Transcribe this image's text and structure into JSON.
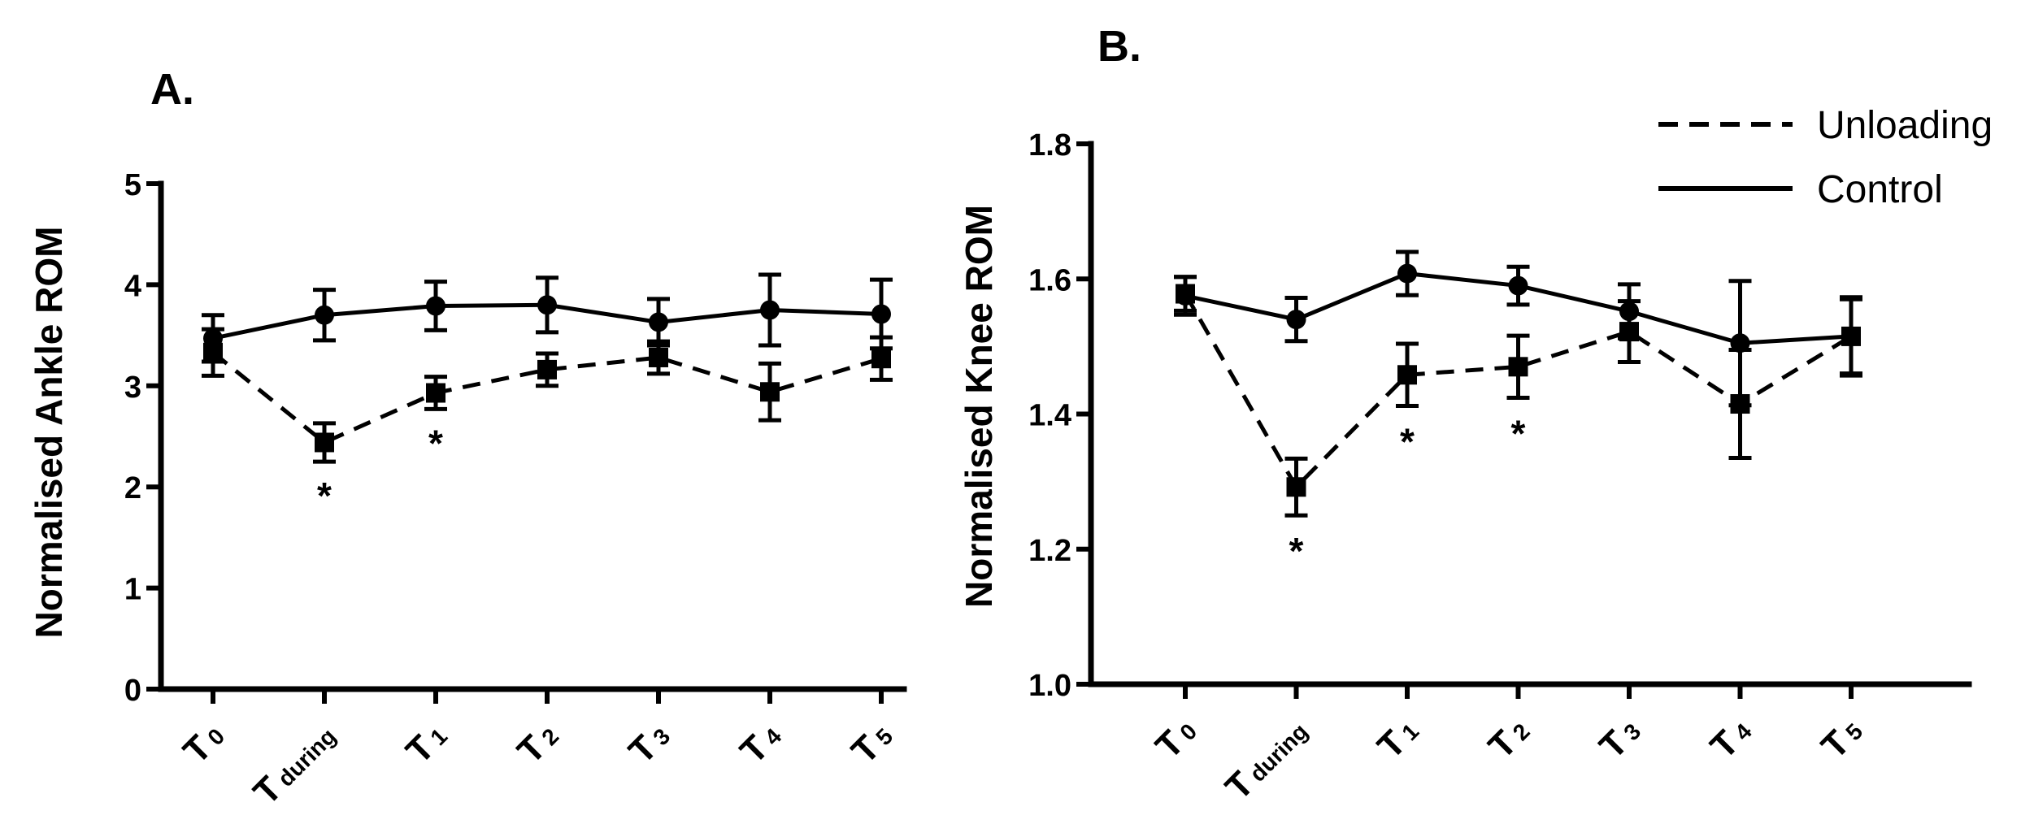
{
  "legend": {
    "unloading": "Unloading",
    "control": "Control"
  },
  "chart_data": [
    {
      "type": "line",
      "panel_label": "A.",
      "title": "",
      "xlabel": "",
      "ylabel": "Normalised Ankle ROM",
      "ylim": [
        0,
        5
      ],
      "yticks": [
        "0",
        "1",
        "2",
        "3",
        "4",
        "5"
      ],
      "categories": [
        {
          "main": "T",
          "sub": "0"
        },
        {
          "main": "T",
          "sub": "during"
        },
        {
          "main": "T",
          "sub": "1"
        },
        {
          "main": "T",
          "sub": "2"
        },
        {
          "main": "T",
          "sub": "3"
        },
        {
          "main": "T",
          "sub": "4"
        },
        {
          "main": "T",
          "sub": "5"
        }
      ],
      "series": [
        {
          "name": "Control",
          "style": "solid",
          "marker": "circle",
          "values": [
            3.47,
            3.7,
            3.79,
            3.8,
            3.63,
            3.75,
            3.71
          ],
          "errors": [
            0.23,
            0.25,
            0.24,
            0.27,
            0.23,
            0.35,
            0.34
          ]
        },
        {
          "name": "Unloading",
          "style": "dashed",
          "marker": "square",
          "values": [
            3.33,
            2.44,
            2.93,
            3.16,
            3.28,
            2.94,
            3.27
          ],
          "errors": [
            0.23,
            0.19,
            0.16,
            0.16,
            0.16,
            0.28,
            0.21
          ]
        }
      ],
      "significance": [
        {
          "index": 1,
          "label": "*"
        },
        {
          "index": 2,
          "label": "*"
        }
      ]
    },
    {
      "type": "line",
      "panel_label": "B.",
      "title": "",
      "xlabel": "",
      "ylabel": "Normalised Knee ROM",
      "ylim": [
        1.0,
        1.8
      ],
      "yticks": [
        "1.0",
        "1.2",
        "1.4",
        "1.6",
        "1.8"
      ],
      "categories": [
        {
          "main": "T",
          "sub": "0"
        },
        {
          "main": "T",
          "sub": "during"
        },
        {
          "main": "T",
          "sub": "1"
        },
        {
          "main": "T",
          "sub": "2"
        },
        {
          "main": "T",
          "sub": "3"
        },
        {
          "main": "T",
          "sub": "4"
        },
        {
          "main": "T",
          "sub": "5"
        }
      ],
      "series": [
        {
          "name": "Control",
          "style": "solid",
          "marker": "circle",
          "values": [
            1.575,
            1.54,
            1.608,
            1.59,
            1.552,
            1.505,
            1.515
          ],
          "errors": [
            0.028,
            0.032,
            0.032,
            0.028,
            0.04,
            0.092,
            0.058
          ]
        },
        {
          "name": "Unloading",
          "style": "dashed",
          "marker": "square",
          "values": [
            1.578,
            1.292,
            1.458,
            1.47,
            1.522,
            1.415,
            1.515
          ],
          "errors": [
            0.025,
            0.042,
            0.046,
            0.046,
            0.045,
            0.08,
            0.055
          ]
        }
      ],
      "significance": [
        {
          "index": 1,
          "label": "*"
        },
        {
          "index": 2,
          "label": "*"
        },
        {
          "index": 3,
          "label": "*"
        }
      ]
    }
  ]
}
